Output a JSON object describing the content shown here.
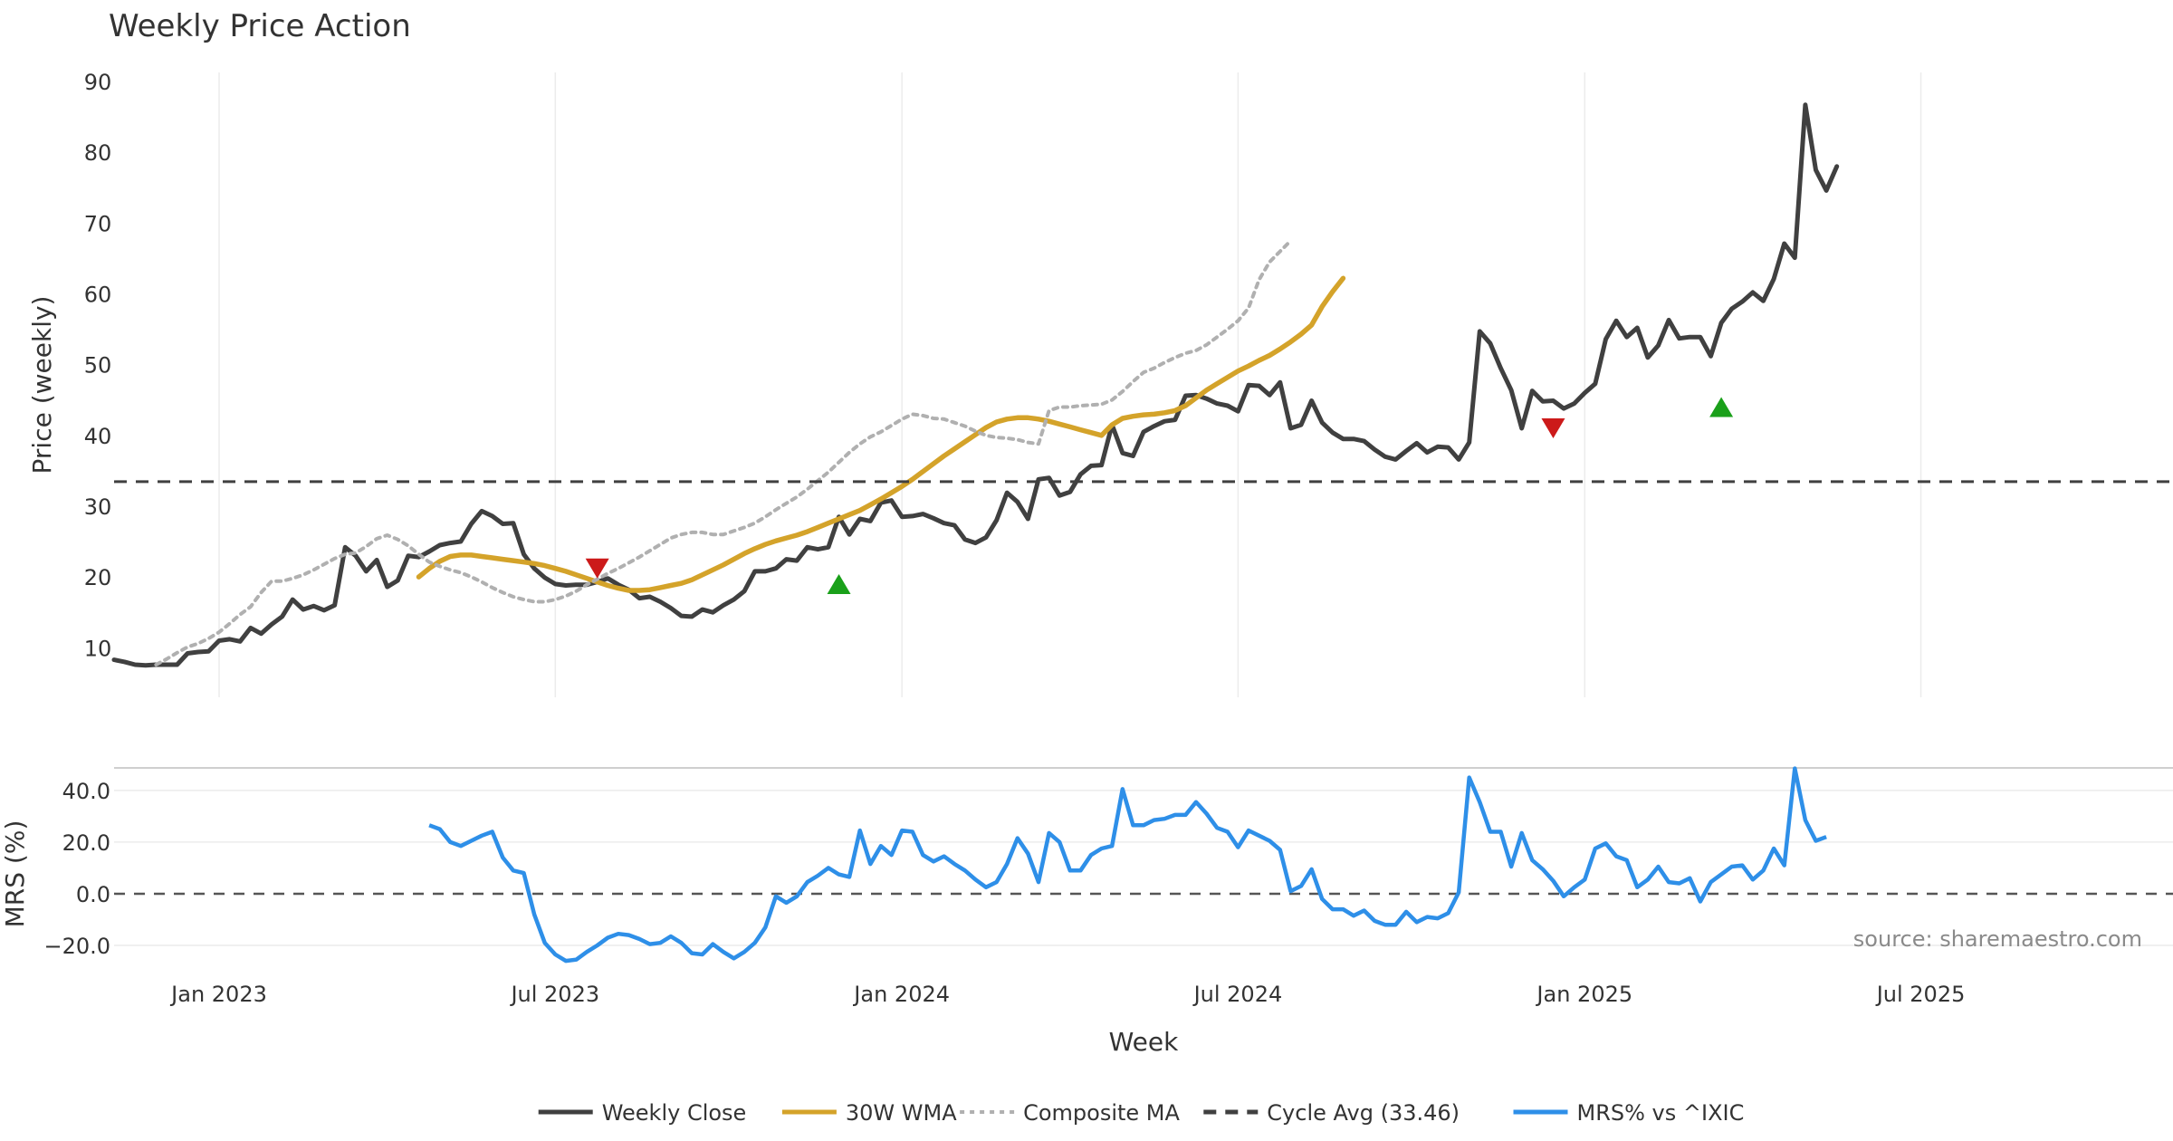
{
  "chart_data": {
    "type": "line",
    "title": "Weekly Price Action",
    "source_note": "source: sharemaestro.com",
    "xlabel": "Week",
    "x_ticks": [
      "Jan 2023",
      "Jul 2023",
      "Jan 2024",
      "Jul 2024",
      "Jan 2025",
      "Jul 2025"
    ],
    "x_tick_weeks": [
      10,
      42,
      75,
      107,
      140,
      172
    ],
    "week_count": 196,
    "price_panel": {
      "ylabel": "Price (weekly)",
      "ylim": [
        3,
        90
      ],
      "y_ticks": [
        10,
        20,
        30,
        40,
        50,
        60,
        70,
        80,
        90
      ],
      "grid": true,
      "series": [
        {
          "name": "Weekly Close",
          "color": "#404040",
          "style": "solid",
          "start_week": 0,
          "values": [
            8.3,
            8.0,
            7.6,
            7.5,
            7.6,
            7.6,
            7.6,
            9.2,
            9.4,
            9.5,
            11.0,
            11.2,
            10.9,
            12.8,
            12.0,
            13.3,
            14.4,
            16.8,
            15.4,
            15.9,
            15.3,
            16.0,
            24.2,
            23.0,
            20.8,
            22.4,
            18.6,
            19.5,
            23.0,
            22.8,
            23.6,
            24.5,
            24.8,
            25.0,
            27.5,
            29.3,
            28.6,
            27.5,
            27.6,
            23.2,
            21.2,
            19.9,
            19.0,
            18.8,
            18.9,
            18.9,
            19.3,
            19.8,
            18.9,
            18.2,
            17.0,
            17.2,
            16.5,
            15.6,
            14.5,
            14.4,
            15.4,
            15.0,
            16.0,
            16.8,
            18.0,
            20.8,
            20.8,
            21.2,
            22.5,
            22.3,
            24.2,
            23.9,
            24.2,
            28.5,
            26.0,
            28.2,
            27.9,
            30.5,
            30.8,
            28.5,
            28.6,
            28.9,
            28.3,
            27.6,
            27.3,
            25.3,
            24.8,
            25.6,
            28.0,
            31.9,
            30.6,
            28.2,
            33.8,
            34.0,
            31.5,
            32.0,
            34.5,
            35.7,
            35.8,
            41.5,
            37.5,
            37.1,
            40.5,
            41.3,
            42.0,
            42.2,
            45.6,
            45.7,
            45.2,
            44.5,
            44.2,
            43.4,
            47.1,
            47.0,
            45.7,
            47.5,
            41.0,
            41.5,
            44.9,
            41.8,
            40.4,
            39.5,
            39.5,
            39.2,
            38.0,
            37.0,
            36.6,
            37.8,
            38.9,
            37.6,
            38.4,
            38.3,
            36.6,
            39.0,
            54.7,
            53.0,
            49.5,
            46.4,
            41.0,
            46.3,
            44.8,
            44.9,
            43.8,
            44.5,
            46.0,
            47.3,
            53.6,
            56.2,
            53.9,
            55.2,
            51.0,
            52.7,
            56.3,
            53.7,
            53.9,
            53.9,
            51.2,
            55.9,
            57.9,
            58.9,
            60.2,
            59.0,
            62.1,
            67.1,
            65.1,
            86.7,
            77.5,
            74.6,
            78.0
          ]
        },
        {
          "name": "30W WMA",
          "color": "#d4a32a",
          "style": "solid",
          "start_week": 29,
          "values": [
            20.0,
            21.2,
            22.2,
            22.9,
            23.1,
            23.1,
            22.9,
            22.7,
            22.5,
            22.3,
            22.1,
            21.9,
            21.6,
            21.2,
            20.8,
            20.3,
            19.8,
            19.3,
            18.8,
            18.4,
            18.1,
            18.1,
            18.2,
            18.5,
            18.8,
            19.1,
            19.6,
            20.3,
            21.0,
            21.7,
            22.5,
            23.3,
            24.0,
            24.6,
            25.1,
            25.5,
            25.9,
            26.4,
            27.0,
            27.6,
            28.2,
            28.8,
            29.4,
            30.2,
            31.0,
            31.9,
            32.8,
            33.8,
            34.9,
            36.0,
            37.1,
            38.1,
            39.1,
            40.1,
            41.1,
            41.9,
            42.3,
            42.5,
            42.5,
            42.3,
            42.0,
            41.6,
            41.2,
            40.8,
            40.4,
            40.0,
            41.5,
            42.4,
            42.7,
            42.9,
            43.0,
            43.2,
            43.5,
            44.2,
            45.3,
            46.4,
            47.3,
            48.2,
            49.1,
            49.8,
            50.6,
            51.3,
            52.2,
            53.2,
            54.3,
            55.6,
            58.2,
            60.3,
            62.2
          ]
        },
        {
          "name": "Composite MA",
          "color": "#b0b0b0",
          "style": "dotted",
          "start_week": 4,
          "values": [
            7.6,
            8.4,
            9.3,
            10.1,
            10.6,
            11.3,
            12.2,
            13.4,
            14.7,
            15.8,
            17.8,
            19.4,
            19.4,
            19.8,
            20.3,
            21.0,
            21.8,
            22.6,
            23.2,
            23.4,
            24.3,
            25.4,
            25.9,
            25.3,
            24.4,
            23.2,
            22.1,
            21.5,
            21.0,
            20.6,
            20.0,
            19.3,
            18.5,
            17.8,
            17.2,
            16.8,
            16.5,
            16.5,
            16.8,
            17.3,
            18.0,
            18.9,
            19.7,
            20.5,
            21.2,
            22.0,
            22.8,
            23.7,
            24.6,
            25.5,
            26.0,
            26.3,
            26.3,
            26.0,
            26.0,
            26.5,
            27.0,
            27.6,
            28.5,
            29.5,
            30.4,
            31.3,
            32.4,
            33.6,
            34.8,
            36.2,
            37.6,
            38.8,
            39.8,
            40.5,
            41.4,
            42.3,
            43.0,
            42.8,
            42.4,
            42.3,
            41.8,
            41.3,
            40.6,
            40.0,
            39.7,
            39.6,
            39.4,
            39.0,
            38.8,
            43.5,
            44.0,
            44.0,
            44.2,
            44.3,
            44.4,
            45.0,
            46.2,
            47.6,
            48.9,
            49.5,
            50.3,
            51.0,
            51.6,
            52.0,
            52.8,
            53.9,
            55.0,
            56.2,
            58.0,
            62.0,
            64.5,
            66.0,
            67.5
          ]
        },
        {
          "name": "Cycle Avg (33.46)",
          "color": "#404040",
          "style": "dashed",
          "constant": 33.46
        }
      ],
      "markers": [
        {
          "type": "sell",
          "week": 46,
          "value": 21.2,
          "color": "#cc1a1a"
        },
        {
          "type": "buy",
          "week": 69,
          "value": 19.0,
          "color": "#1aa01a"
        },
        {
          "type": "sell",
          "week": 137,
          "value": 41.0,
          "color": "#cc1a1a"
        },
        {
          "type": "buy",
          "week": 153,
          "value": 44.0,
          "color": "#1aa01a"
        }
      ]
    },
    "mrs_panel": {
      "ylabel": "MRS (%)",
      "ylim": [
        -27,
        48
      ],
      "y_ticks": [
        -20.0,
        0.0,
        20.0,
        40.0
      ],
      "y_tick_labels": [
        "−20.0",
        "0.0",
        "20.0",
        "40.0"
      ],
      "zero_line": 0,
      "series": [
        {
          "name": "MRS% vs ^IXIC",
          "color": "#2e8fe8",
          "style": "solid",
          "start_week": 30,
          "values": [
            26.5,
            25.0,
            20.0,
            18.5,
            20.5,
            22.5,
            24.0,
            14.0,
            9.0,
            8.0,
            -8.0,
            -19.0,
            -23.5,
            -26.0,
            -25.5,
            -22.5,
            -20.0,
            -17.0,
            -15.5,
            -16.0,
            -17.5,
            -19.5,
            -19.0,
            -16.5,
            -19.0,
            -23.0,
            -23.5,
            -19.5,
            -22.5,
            -25.0,
            -22.5,
            -19.0,
            -13.0,
            -1.0,
            -3.5,
            -1.0,
            4.5,
            7.0,
            10.0,
            7.5,
            6.5,
            24.5,
            11.5,
            18.5,
            15.0,
            24.5,
            24.0,
            15.0,
            12.5,
            14.5,
            11.5,
            9.0,
            5.5,
            2.5,
            4.5,
            11.5,
            21.5,
            15.5,
            4.5,
            23.5,
            20.0,
            9.0,
            9.0,
            15.0,
            17.5,
            18.5,
            40.5,
            26.5,
            26.5,
            28.5,
            29.0,
            30.5,
            30.5,
            35.5,
            31.0,
            25.5,
            24.0,
            18.0,
            24.5,
            22.5,
            20.5,
            17.0,
            1.0,
            3.0,
            9.5,
            -2.0,
            -6.0,
            -6.0,
            -8.5,
            -6.5,
            -10.5,
            -12.0,
            -12.0,
            -7.0,
            -11.0,
            -9.0,
            -9.5,
            -7.5,
            0.5,
            45.0,
            35.5,
            24.0,
            24.0,
            10.5,
            23.5,
            13.0,
            9.5,
            5.0,
            -1.0,
            2.5,
            5.5,
            17.5,
            19.5,
            14.5,
            13.0,
            2.5,
            5.5,
            10.5,
            4.5,
            4.0,
            6.0,
            -3.0,
            4.5,
            7.5,
            10.5,
            11.0,
            5.5,
            9.0,
            17.5,
            11.0,
            48.5,
            28.5,
            20.5,
            22.0
          ]
        }
      ]
    },
    "legend": {
      "position": "bottom-center",
      "entries": [
        {
          "label": "Weekly Close",
          "color": "#404040",
          "style": "solid"
        },
        {
          "label": "30W WMA",
          "color": "#d4a32a",
          "style": "solid"
        },
        {
          "label": "Composite MA",
          "color": "#b0b0b0",
          "style": "dotted"
        },
        {
          "label": "Cycle Avg (33.46)",
          "color": "#404040",
          "style": "dashed"
        },
        {
          "label": "MRS% vs ^IXIC",
          "color": "#2e8fe8",
          "style": "solid"
        }
      ]
    }
  }
}
